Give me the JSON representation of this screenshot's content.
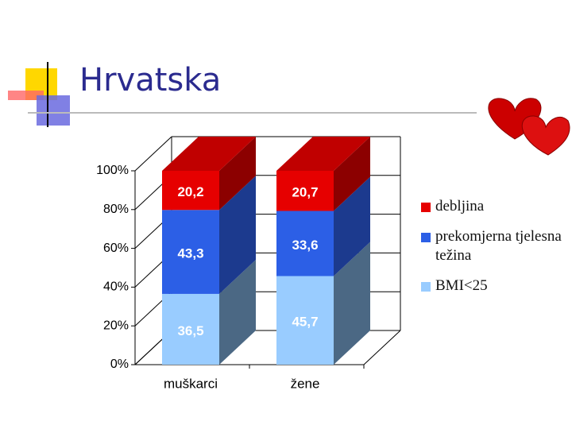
{
  "title": "Hrvatska",
  "chart_data": {
    "type": "bar3d-stacked",
    "categories": [
      "muškarci",
      "žene"
    ],
    "series": [
      {
        "name": "BMI<25",
        "color": "#99ccff",
        "side": "#4b6884",
        "values": [
          36.5,
          45.7
        ],
        "value_labels": [
          "36,5",
          "45,7"
        ]
      },
      {
        "name": "prekomjerna tjelesna težina",
        "color": "#2c5fe6",
        "side": "#1c3a8e",
        "values": [
          43.3,
          33.6
        ],
        "value_labels": [
          "43,3",
          "33,6"
        ]
      },
      {
        "name": "debljina",
        "color": "#e60000",
        "side": "#8c0000",
        "values": [
          20.2,
          20.7
        ],
        "value_labels": [
          "20,2",
          "20,7"
        ]
      }
    ],
    "ylim": [
      0,
      100
    ],
    "yticks": [
      {
        "value": 0,
        "label": "0%"
      },
      {
        "value": 20,
        "label": "20%"
      },
      {
        "value": 40,
        "label": "40%"
      },
      {
        "value": 60,
        "label": "60%"
      },
      {
        "value": 80,
        "label": "80%"
      },
      {
        "value": 100,
        "label": "100%"
      }
    ],
    "grid": true
  }
}
